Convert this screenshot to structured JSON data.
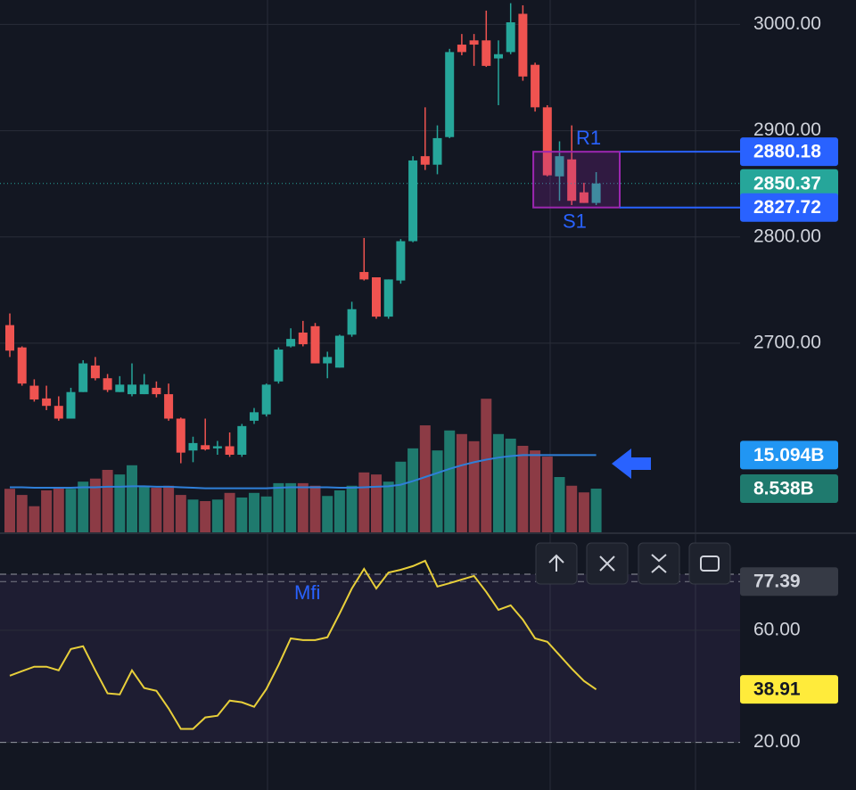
{
  "chart_data": [
    {
      "type": "candlestick",
      "open": [
        2717,
        2696,
        2660,
        2648,
        2641,
        2629,
        2654,
        2679,
        2667,
        2654,
        2652,
        2652,
        2658,
        2652,
        2629,
        2599,
        2604,
        2601,
        2603,
        2595,
        2627,
        2633,
        2664,
        2697,
        2710,
        2716,
        2681,
        2677,
        2708,
        2767,
        2762,
        2725,
        2759,
        2796,
        2876,
        2868,
        2894,
        2981,
        2985,
        2985,
        2968,
        2974,
        3010,
        2962,
        2922,
        2857,
        2873,
        2842,
        2832
      ],
      "high": [
        2728,
        2697,
        2666,
        2660,
        2650,
        2658,
        2684,
        2687,
        2671,
        2669,
        2681,
        2671,
        2664,
        2662,
        2630,
        2612,
        2629,
        2608,
        2616,
        2624,
        2639,
        2662,
        2696,
        2714,
        2721,
        2719,
        2692,
        2708,
        2739,
        2799,
        2762,
        2760,
        2798,
        2876,
        2922,
        2905,
        2977,
        2991,
        2991,
        3013,
        2985,
        3020,
        3018,
        2964,
        2924,
        2890,
        2905,
        2851,
        2861
      ],
      "low": [
        2687,
        2660,
        2645,
        2637,
        2627,
        2629,
        2654,
        2665,
        2654,
        2654,
        2650,
        2652,
        2649,
        2627,
        2587,
        2588,
        2599,
        2595,
        2593,
        2593,
        2624,
        2631,
        2662,
        2696,
        2697,
        2681,
        2667,
        2677,
        2706,
        2759,
        2723,
        2723,
        2756,
        2795,
        2863,
        2859,
        2893,
        2971,
        2961,
        2960,
        2924,
        2972,
        2947,
        2918,
        2857,
        2834,
        2830,
        2832,
        2830
      ],
      "close": [
        2693,
        2662,
        2647,
        2641,
        2629,
        2654,
        2681,
        2667,
        2656,
        2661,
        2661,
        2661,
        2652,
        2629,
        2597,
        2606,
        2600,
        2603,
        2595,
        2622,
        2635,
        2661,
        2694,
        2704,
        2699,
        2681,
        2687,
        2707,
        2732,
        2760,
        2725,
        2760,
        2796,
        2872,
        2868,
        2893,
        2974,
        2974,
        2981,
        2961,
        2972,
        3002,
        2951,
        2922,
        2858,
        2876,
        2834,
        2832,
        2850.37
      ],
      "up_color": "#26a69a",
      "down_color": "#ef5350",
      "ylim": [
        2522,
        3023
      ],
      "yticks": [
        {
          "value": 3000,
          "label": "3000.00"
        },
        {
          "value": 2900,
          "label": "2900.00"
        },
        {
          "value": 2800,
          "label": "2800.00"
        },
        {
          "value": 2700,
          "label": "2700.00"
        }
      ],
      "grid": true,
      "levels": [
        {
          "name": "R1",
          "value": 2880.18,
          "color": "#2962ff"
        },
        {
          "name": "S1",
          "value": 2827.72,
          "color": "#2962ff"
        }
      ],
      "volume": {
        "values": [
          8.5,
          7.3,
          5.1,
          8.2,
          8.7,
          8.5,
          9.9,
          10.5,
          12.2,
          11.3,
          13.1,
          9.1,
          8.7,
          9.1,
          7.3,
          6.4,
          6.1,
          6.4,
          7.7,
          6.8,
          7.7,
          7.0,
          9.6,
          9.6,
          9.6,
          9.1,
          7.1,
          8.2,
          9.1,
          11.7,
          11.3,
          9.9,
          13.8,
          16.4,
          20.9,
          16.0,
          19.9,
          19.2,
          17.8,
          26.1,
          19.2,
          18.3,
          16.9,
          16.0,
          14.8,
          10.8,
          9.1,
          7.8,
          8.538
        ],
        "value_labels": [
          null,
          null,
          null,
          null,
          null,
          null,
          null,
          null,
          null,
          null,
          null,
          null,
          null,
          null,
          null,
          null,
          null,
          null,
          null,
          null,
          null,
          null,
          null,
          null,
          null,
          null,
          null,
          null,
          null,
          null,
          null,
          null,
          null,
          null,
          null,
          null,
          null,
          null,
          null,
          null,
          null,
          null,
          null,
          null,
          null,
          null,
          null,
          null,
          "8.538B"
        ],
        "up_color": "#1f7a6e",
        "down_color": "#8c3b45",
        "ma": [
          8.8,
          8.8,
          8.7,
          8.7,
          8.7,
          8.7,
          8.8,
          8.8,
          8.9,
          8.9,
          9.0,
          9.0,
          8.9,
          8.9,
          8.8,
          8.7,
          8.6,
          8.6,
          8.6,
          8.6,
          8.6,
          8.6,
          8.7,
          8.8,
          8.8,
          8.8,
          8.8,
          8.7,
          8.7,
          8.8,
          8.9,
          9.0,
          9.3,
          10.0,
          10.8,
          11.6,
          12.4,
          13.1,
          13.7,
          14.2,
          14.6,
          14.9,
          15.1,
          15.1,
          15.1,
          15.1,
          15.1,
          15.1,
          15.094
        ],
        "ma_value_labels": [
          null,
          null,
          null,
          null,
          null,
          null,
          null,
          null,
          null,
          null,
          null,
          null,
          null,
          null,
          null,
          null,
          null,
          null,
          null,
          null,
          null,
          null,
          null,
          null,
          null,
          null,
          null,
          null,
          null,
          null,
          null,
          null,
          null,
          null,
          null,
          null,
          null,
          null,
          null,
          null,
          null,
          null,
          null,
          null,
          null,
          null,
          null,
          null,
          "15.094B"
        ],
        "ma_color": "#2f7fd8",
        "ylim": [
          0,
          104
        ]
      }
    },
    {
      "type": "line",
      "name": "Mfi",
      "values": [
        43.8,
        45.4,
        47,
        47,
        45.7,
        53.3,
        54.3,
        45.7,
        37.5,
        37.1,
        45.7,
        39.4,
        38.4,
        32.1,
        24.8,
        24.8,
        28.9,
        29.5,
        34.9,
        34.3,
        32.7,
        39,
        47.6,
        57.1,
        56.5,
        56.5,
        57.5,
        66,
        74.9,
        81.9,
        74.9,
        80.6,
        81.6,
        82.9,
        84.8,
        75.6,
        76.8,
        78.1,
        79.4,
        73.7,
        67.3,
        68.9,
        63.8,
        57.1,
        55.9,
        51.1,
        46.3,
        41.9,
        38.91
      ],
      "color": "#e8cf3a",
      "ylim": [
        3,
        94
      ],
      "yticks": [
        {
          "value": 60,
          "label": "60.00"
        },
        {
          "value": 20,
          "label": "20.00"
        }
      ],
      "grid": true,
      "bands": [
        80,
        20
      ],
      "marker": 77.39
    }
  ]
}
